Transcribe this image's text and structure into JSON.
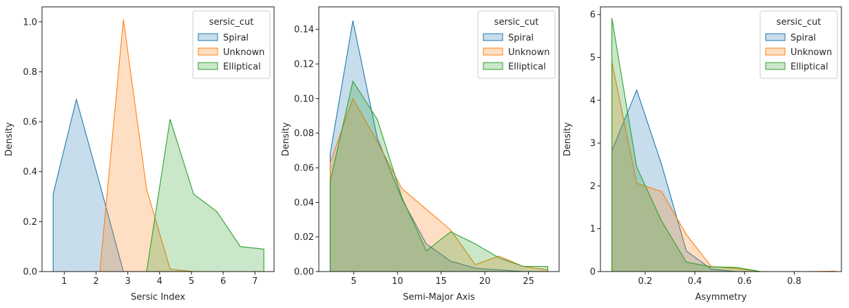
{
  "chart_data": [
    {
      "type": "area",
      "xlabel": "Sersic Index",
      "ylabel": "Density",
      "xlim": [
        0.3,
        7.6
      ],
      "ylim": [
        0,
        1.06
      ],
      "xticks": [
        1,
        2,
        3,
        4,
        5,
        6,
        7
      ],
      "yticks": [
        0.0,
        0.2,
        0.4,
        0.6,
        0.8,
        1.0
      ],
      "tick_decimals": 1,
      "legend": {
        "title": "sersic_cut",
        "placement": "top-right"
      },
      "series": [
        {
          "name": "Spiral",
          "color": "#1f77b4",
          "x": [
            0.65,
            0.65,
            1.38,
            2.12,
            2.86,
            3.59,
            4.33,
            5.07,
            5.8,
            6.54,
            7.28
          ],
          "y": [
            0,
            0.31,
            0.69,
            0.35,
            0.0,
            0.0,
            0.0,
            0.0,
            0.0,
            0.0,
            0.0
          ]
        },
        {
          "name": "Unknown",
          "color": "#ff7f0e",
          "x": [
            2.12,
            2.12,
            2.86,
            3.59,
            4.33,
            5.07,
            5.8,
            6.54,
            7.28
          ],
          "y": [
            0,
            0.0,
            1.01,
            0.33,
            0.01,
            0.0,
            0.0,
            0.0,
            0.0
          ]
        },
        {
          "name": "Elliptical",
          "color": "#2ca02c",
          "x": [
            3.59,
            3.59,
            4.33,
            5.07,
            5.8,
            6.54,
            7.28,
            7.28
          ],
          "y": [
            0,
            0.0,
            0.61,
            0.31,
            0.24,
            0.1,
            0.09,
            0
          ]
        }
      ]
    },
    {
      "type": "area",
      "xlabel": "Semi-Major Axis",
      "ylabel": "Density",
      "xlim": [
        1.0,
        28.5
      ],
      "ylim": [
        0,
        0.153
      ],
      "xticks": [
        5,
        10,
        15,
        20,
        25
      ],
      "yticks": [
        0.0,
        0.02,
        0.04,
        0.06,
        0.08,
        0.1,
        0.12,
        0.14
      ],
      "tick_decimals": 2,
      "legend": {
        "title": "sersic_cut",
        "placement": "top-right"
      },
      "series": [
        {
          "name": "Spiral",
          "color": "#1f77b4",
          "x": [
            2.3,
            2.3,
            4.9,
            7.7,
            10.5,
            13.3,
            16.1,
            18.9,
            21.6,
            24.4,
            27.2,
            27.2
          ],
          "y": [
            0,
            0.068,
            0.145,
            0.077,
            0.042,
            0.016,
            0.006,
            0.002,
            0.001,
            0.0,
            0.0,
            0
          ]
        },
        {
          "name": "Unknown",
          "color": "#ff7f0e",
          "x": [
            2.3,
            2.3,
            4.9,
            7.7,
            10.5,
            13.3,
            16.1,
            18.9,
            21.6,
            24.4,
            27.2,
            27.2
          ],
          "y": [
            0,
            0.063,
            0.1,
            0.075,
            0.048,
            0.036,
            0.024,
            0.004,
            0.009,
            0.003,
            0.001,
            0
          ]
        },
        {
          "name": "Elliptical",
          "color": "#2ca02c",
          "x": [
            2.3,
            2.3,
            4.9,
            7.7,
            10.5,
            13.3,
            16.1,
            18.9,
            21.6,
            24.4,
            27.2,
            27.2
          ],
          "y": [
            0,
            0.052,
            0.11,
            0.088,
            0.043,
            0.012,
            0.023,
            0.016,
            0.008,
            0.003,
            0.003,
            0
          ]
        }
      ]
    },
    {
      "type": "area",
      "xlabel": "Asymmetry",
      "ylabel": "Density",
      "xlim": [
        0.02,
        0.99
      ],
      "ylim": [
        0,
        6.18
      ],
      "xticks": [
        0.2,
        0.4,
        0.6,
        0.8
      ],
      "yticks": [
        0,
        1,
        2,
        3,
        4,
        5,
        6
      ],
      "tick_decimals": 0,
      "x_tick_decimals": 1,
      "legend": {
        "title": "sersic_cut",
        "placement": "top-right"
      },
      "series": [
        {
          "name": "Spiral",
          "color": "#1f77b4",
          "x": [
            0.066,
            0.066,
            0.166,
            0.266,
            0.366,
            0.466,
            0.566,
            0.666,
            0.766,
            0.866,
            0.966
          ],
          "y": [
            0,
            2.82,
            4.24,
            2.5,
            0.48,
            0.06,
            0.0,
            0.0,
            0.0,
            0.0,
            0.0
          ]
        },
        {
          "name": "Unknown",
          "color": "#ff7f0e",
          "x": [
            0.066,
            0.066,
            0.166,
            0.266,
            0.366,
            0.466,
            0.566,
            0.666,
            0.766,
            0.866,
            0.966
          ],
          "y": [
            0,
            4.9,
            2.06,
            1.87,
            0.86,
            0.12,
            0.07,
            0.0,
            0.0,
            0.0,
            0.01
          ]
        },
        {
          "name": "Elliptical",
          "color": "#2ca02c",
          "x": [
            0.066,
            0.066,
            0.166,
            0.266,
            0.366,
            0.466,
            0.566,
            0.666
          ],
          "y": [
            0,
            5.92,
            2.44,
            1.18,
            0.22,
            0.11,
            0.1,
            0.0
          ]
        }
      ]
    }
  ]
}
